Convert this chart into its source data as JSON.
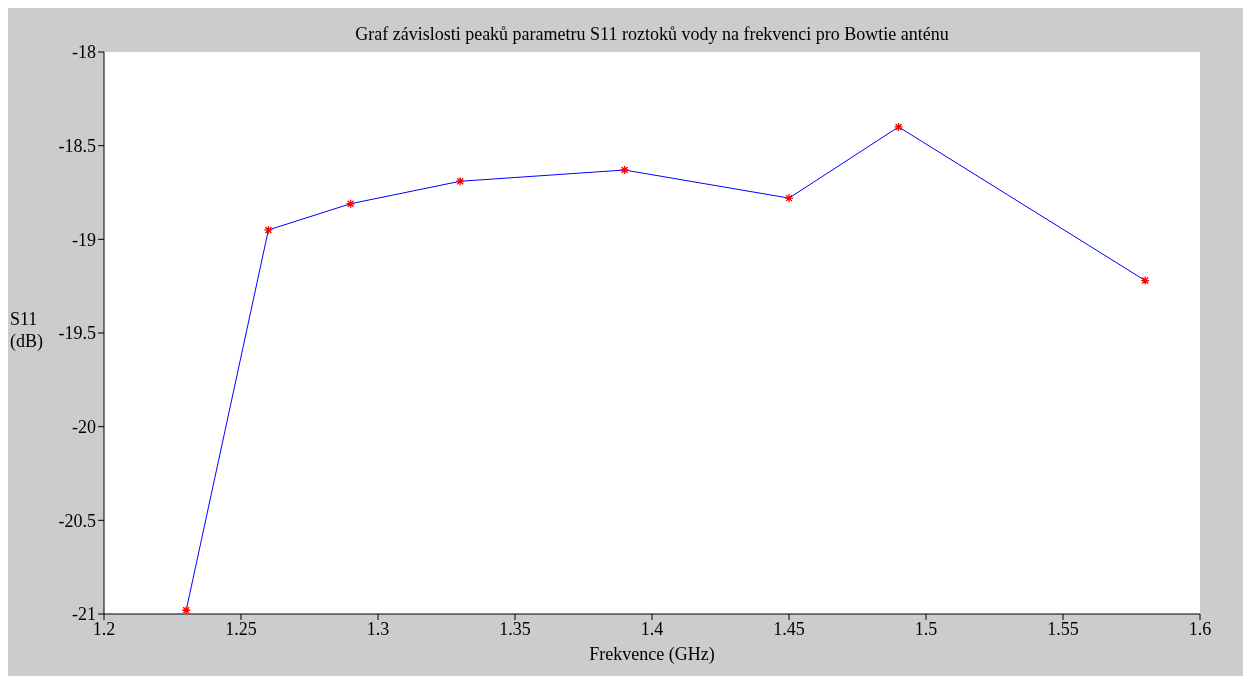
{
  "chart_data": {
    "type": "line",
    "title": "Graf závislosti peaků parametru S11 roztoků vody na frekvenci pro Bowtie anténu",
    "xlabel": "Frekvence (GHz)",
    "ylabel": "S11 (dB)",
    "x": [
      1.23,
      1.26,
      1.29,
      1.33,
      1.39,
      1.45,
      1.49,
      1.58
    ],
    "series": [
      {
        "color": "#0000ff",
        "colors": [
          "#ff0000",
          "#ff0000",
          "#ff0000",
          "#ff0000",
          "#ff0000",
          "#ff0000",
          "#ff0000",
          "#ff0000"
        ],
        "values": [
          -20.98,
          -18.95,
          -18.81,
          -18.69,
          -18.63,
          -18.78,
          -18.4,
          -19.22
        ]
      }
    ],
    "xlim": [
      1.2,
      1.6
    ],
    "xticks": [
      1.2,
      1.25,
      1.3,
      1.35,
      1.4,
      1.45,
      1.5,
      1.55,
      1.6
    ],
    "ylim": [
      -21,
      -18
    ],
    "yticks": [
      -21,
      -20.5,
      -20,
      -19.5,
      -19,
      -18.5,
      -18
    ],
    "grid": false,
    "marker": "cross",
    "line_style": "solid",
    "legend": false
  }
}
